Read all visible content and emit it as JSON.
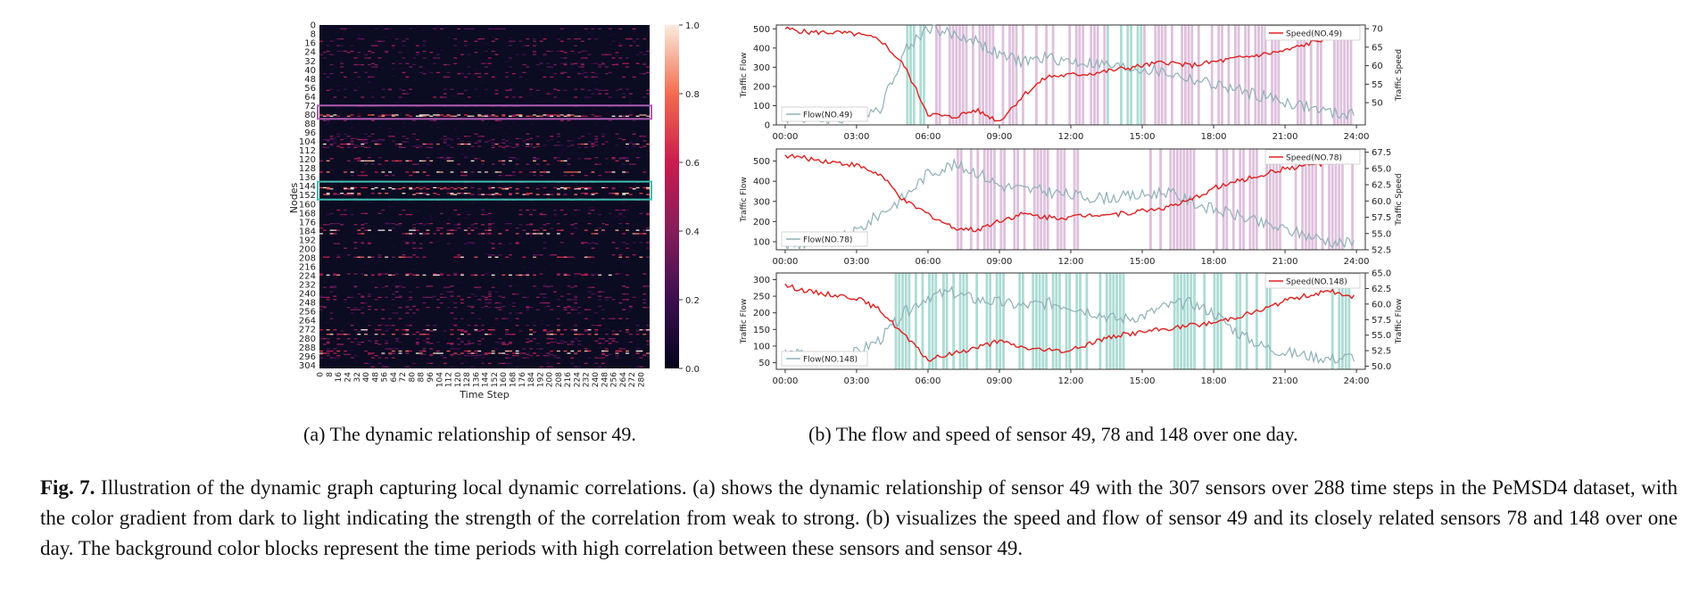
{
  "chart_data": [
    {
      "type": "heatmap",
      "title": "",
      "xlabel": "Time Step",
      "ylabel": "Nodes",
      "x_tick_labels": [
        "0",
        "8",
        "16",
        "24",
        "32",
        "40",
        "48",
        "56",
        "64",
        "72",
        "80",
        "88",
        "96",
        "104",
        "112",
        "120",
        "128",
        "136",
        "144",
        "152",
        "160",
        "168",
        "176",
        "184",
        "192",
        "200",
        "208",
        "216",
        "224",
        "232",
        "240",
        "248",
        "256",
        "264",
        "272",
        "280"
      ],
      "y_tick_labels": [
        "0",
        "8",
        "16",
        "24",
        "32",
        "40",
        "48",
        "56",
        "64",
        "72",
        "80",
        "88",
        "96",
        "104",
        "112",
        "120",
        "128",
        "136",
        "144",
        "152",
        "160",
        "168",
        "176",
        "184",
        "192",
        "200",
        "208",
        "216",
        "224",
        "232",
        "240",
        "248",
        "256",
        "264",
        "272",
        "280",
        "288",
        "296",
        "304"
      ],
      "colorbar": {
        "ticks": [
          0.0,
          0.2,
          0.4,
          0.6,
          0.8,
          1.0
        ],
        "labels": [
          "0.0",
          "0.2",
          "0.4",
          "0.6",
          "0.8",
          "1.0"
        ],
        "range": [
          0,
          1
        ]
      },
      "highlight_boxes": [
        {
          "node_range": [
            72,
            84
          ],
          "color": "#b05cb4"
        },
        {
          "node_range": [
            140,
            156
          ],
          "color": "#3fbfb0"
        }
      ],
      "n_nodes": 307,
      "n_steps": 288
    },
    {
      "type": "line",
      "xlabel": "",
      "ylabel_left": "Traffic Flow",
      "ylabel_right": "Traffic Speed",
      "x_tick_labels": [
        "00:00",
        "03:00",
        "06:00",
        "09:00",
        "12:00",
        "15:00",
        "18:00",
        "21:00",
        "24:00"
      ],
      "x_range_hours": [
        0,
        24
      ],
      "left_ylim": [
        0,
        520
      ],
      "left_ticks": [
        0,
        100,
        200,
        300,
        400,
        500
      ],
      "right_ylim": [
        44,
        71
      ],
      "right_ticks": [
        50,
        55,
        60,
        65,
        70
      ],
      "series": [
        {
          "name": "Flow(NO.49)",
          "axis": "left",
          "color": "#8fb0b8",
          "x": [
            0,
            1,
            2,
            3,
            4,
            5,
            6,
            7,
            8,
            9,
            10,
            11,
            12,
            13,
            14,
            15,
            16,
            17,
            18,
            19,
            20,
            21,
            22,
            23,
            24
          ],
          "values": [
            40,
            30,
            25,
            45,
            90,
            380,
            510,
            470,
            440,
            360,
            330,
            350,
            330,
            320,
            300,
            290,
            270,
            240,
            210,
            180,
            150,
            120,
            90,
            60,
            50
          ]
        },
        {
          "name": "Speed(NO.49)",
          "axis": "right",
          "color": "#dd2222",
          "x": [
            0,
            1,
            2,
            3,
            4,
            5,
            6,
            7,
            8,
            9,
            10,
            11,
            12,
            13,
            14,
            15,
            16,
            17,
            18,
            19,
            20,
            21,
            22,
            23,
            24
          ],
          "values": [
            70,
            69,
            69,
            68.5,
            67,
            60,
            47,
            46,
            48,
            45,
            52,
            57,
            57.5,
            58,
            59,
            60,
            61,
            60,
            61,
            62,
            63,
            64,
            66,
            68,
            68
          ]
        }
      ],
      "shaded_color": "#d8b6d6",
      "shaded_color2": "#9fd6cc",
      "hatch_hours": [
        [
          4.8,
          6.0
        ],
        [
          6.3,
          12.5
        ],
        [
          12.8,
          15.2
        ],
        [
          15.5,
          21.0
        ],
        [
          21.2,
          24.0
        ]
      ],
      "legend_flow": "Flow(NO.49)",
      "legend_speed": "Speed(NO.49)"
    },
    {
      "type": "line",
      "ylabel_left": "Traffic Flow",
      "ylabel_right": "Traffic Speed",
      "x_tick_labels": [
        "00:00",
        "03:00",
        "06:00",
        "09:00",
        "12:00",
        "15:00",
        "18:00",
        "21:00",
        "24:00"
      ],
      "x_range_hours": [
        0,
        24
      ],
      "left_ylim": [
        60,
        560
      ],
      "left_ticks": [
        100,
        200,
        300,
        400,
        500
      ],
      "right_ylim": [
        52.5,
        68
      ],
      "right_ticks": [
        52.5,
        55.0,
        57.5,
        60.0,
        62.5,
        65.0,
        67.5
      ],
      "right_tick_labels": [
        "52.5",
        "55.0",
        "57.5",
        "60.0",
        "62.5",
        "65.0",
        "67.5"
      ],
      "series": [
        {
          "name": "Flow(NO.78)",
          "axis": "left",
          "color": "#8fb0b8",
          "x": [
            0,
            1,
            2,
            3,
            4,
            5,
            6,
            7,
            8,
            9,
            10,
            11,
            12,
            13,
            14,
            15,
            16,
            17,
            18,
            19,
            20,
            21,
            22,
            23,
            24
          ],
          "values": [
            80,
            90,
            100,
            150,
            240,
            320,
            440,
            480,
            450,
            380,
            360,
            350,
            330,
            320,
            320,
            330,
            350,
            300,
            260,
            230,
            190,
            160,
            130,
            100,
            90
          ]
        },
        {
          "name": "Speed(NO.78)",
          "axis": "right",
          "color": "#dd2222",
          "x": [
            0,
            1,
            2,
            3,
            4,
            5,
            6,
            7,
            8,
            9,
            10,
            11,
            12,
            13,
            14,
            15,
            16,
            17,
            18,
            19,
            20,
            21,
            22,
            23,
            24
          ],
          "values": [
            67,
            66.5,
            66,
            65.5,
            64,
            60,
            58,
            56,
            55.5,
            57,
            58,
            57.5,
            57.5,
            58,
            58,
            58.5,
            59,
            60,
            62,
            63,
            64,
            65,
            65.5,
            66,
            66
          ]
        }
      ],
      "shaded_color": "#d8b6d6",
      "hatch_hours": [
        [
          7.2,
          12.3
        ],
        [
          15.3,
          17.2
        ],
        [
          17.8,
          21.0
        ],
        [
          21.4,
          23.8
        ]
      ],
      "legend_flow": "Flow(NO.78)",
      "legend_speed": "Speed(NO.78)"
    },
    {
      "type": "line",
      "ylabel_left": "Traffic Flow",
      "ylabel_right": "Traffic Flow",
      "x_tick_labels": [
        "00:00",
        "03:00",
        "06:00",
        "09:00",
        "12:00",
        "15:00",
        "18:00",
        "21:00",
        "24:00"
      ],
      "x_range_hours": [
        0,
        24
      ],
      "left_ylim": [
        30,
        320
      ],
      "left_ticks": [
        50,
        100,
        150,
        200,
        250,
        300
      ],
      "right_ylim": [
        49.5,
        65
      ],
      "right_ticks": [
        50.0,
        52.5,
        55.0,
        57.5,
        60.0,
        62.5,
        65.0
      ],
      "right_tick_labels": [
        "50.0",
        "52.5",
        "55.0",
        "57.5",
        "60.0",
        "62.5",
        "65.0"
      ],
      "series": [
        {
          "name": "Flow(NO.148)",
          "axis": "left",
          "color": "#8fb0b8",
          "x": [
            0,
            1,
            2,
            3,
            4,
            5,
            6,
            7,
            8,
            9,
            10,
            11,
            12,
            13,
            14,
            15,
            16,
            17,
            18,
            19,
            20,
            21,
            22,
            23,
            24
          ],
          "values": [
            80,
            70,
            60,
            80,
            120,
            200,
            250,
            260,
            240,
            230,
            220,
            230,
            220,
            200,
            180,
            190,
            220,
            230,
            200,
            140,
            100,
            80,
            70,
            60,
            70
          ]
        },
        {
          "name": "Speed(NO.148)",
          "axis": "right",
          "color": "#dd2222",
          "x": [
            0,
            1,
            2,
            3,
            4,
            5,
            6,
            7,
            8,
            9,
            10,
            11,
            12,
            13,
            14,
            15,
            16,
            17,
            18,
            19,
            20,
            21,
            22,
            23,
            24
          ],
          "values": [
            63,
            62,
            61.5,
            61,
            59,
            55,
            51,
            52,
            53,
            54,
            53,
            52.5,
            52.5,
            54,
            55,
            55.5,
            56,
            56.5,
            57,
            58,
            59,
            60.5,
            61.5,
            62,
            61
          ]
        }
      ],
      "shaded_color": "#9fd6cc",
      "hatch_hours": [
        [
          4.6,
          6.4
        ],
        [
          6.6,
          9.6
        ],
        [
          9.8,
          12.0
        ],
        [
          12.2,
          14.2
        ],
        [
          16.3,
          18.3
        ],
        [
          18.5,
          20.8
        ],
        [
          22.8,
          24.0
        ]
      ],
      "legend_flow": "Flow(NO.148)",
      "legend_speed": "Speed(NO.148)"
    }
  ],
  "captions": {
    "sub_a": "(a)  The dynamic relationship of sensor 49.",
    "sub_b": "(b)  The flow and speed of sensor 49, 78 and 148 over one day.",
    "fig_label": "Fig. 7.",
    "fig_text": " Illustration of the dynamic graph capturing local dynamic correlations. (a) shows the dynamic relationship of sensor 49 with the 307 sensors over 288 time steps in the PeMSD4 dataset, with the color gradient from dark to light indicating the strength of the correlation from weak to strong. (b) visualizes the speed and flow of sensor 49 and its closely related sensors 78 and 148 over one day. The background color blocks represent the time periods with high correlation between these sensors and sensor 49."
  }
}
